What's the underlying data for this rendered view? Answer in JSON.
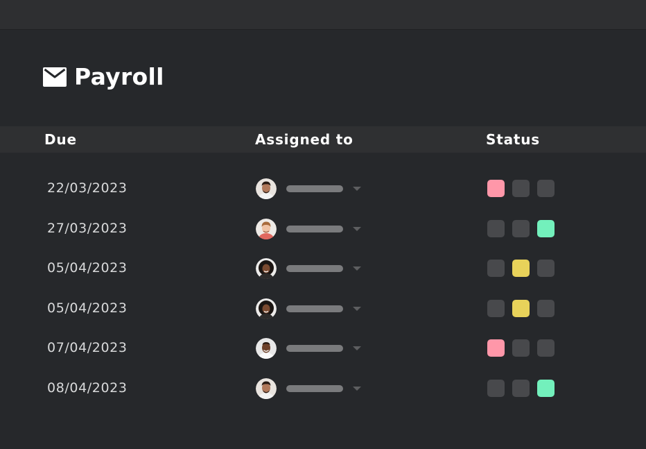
{
  "header": {
    "title": "Payroll",
    "icon": "mail-icon"
  },
  "table": {
    "columns": [
      "Due",
      "Assigned to",
      "Status"
    ],
    "status_colors": {
      "off": "#48494c",
      "pink": "#ff97a9",
      "yellow": "#e8d25a",
      "green": "#73f0bc"
    },
    "rows": [
      {
        "due": "22/03/2023",
        "avatar": "avatar-1",
        "status_active": 0,
        "status_color": "#ff97a9"
      },
      {
        "due": "27/03/2023",
        "avatar": "avatar-2",
        "status_active": 2,
        "status_color": "#73f0bc"
      },
      {
        "due": "05/04/2023",
        "avatar": "avatar-3",
        "status_active": 1,
        "status_color": "#e8d25a"
      },
      {
        "due": "05/04/2023",
        "avatar": "avatar-3",
        "status_active": 1,
        "status_color": "#e8d25a"
      },
      {
        "due": "07/04/2023",
        "avatar": "avatar-4",
        "status_active": 0,
        "status_color": "#ff97a9"
      },
      {
        "due": "08/04/2023",
        "avatar": "avatar-1",
        "status_active": 2,
        "status_color": "#73f0bc"
      }
    ]
  }
}
